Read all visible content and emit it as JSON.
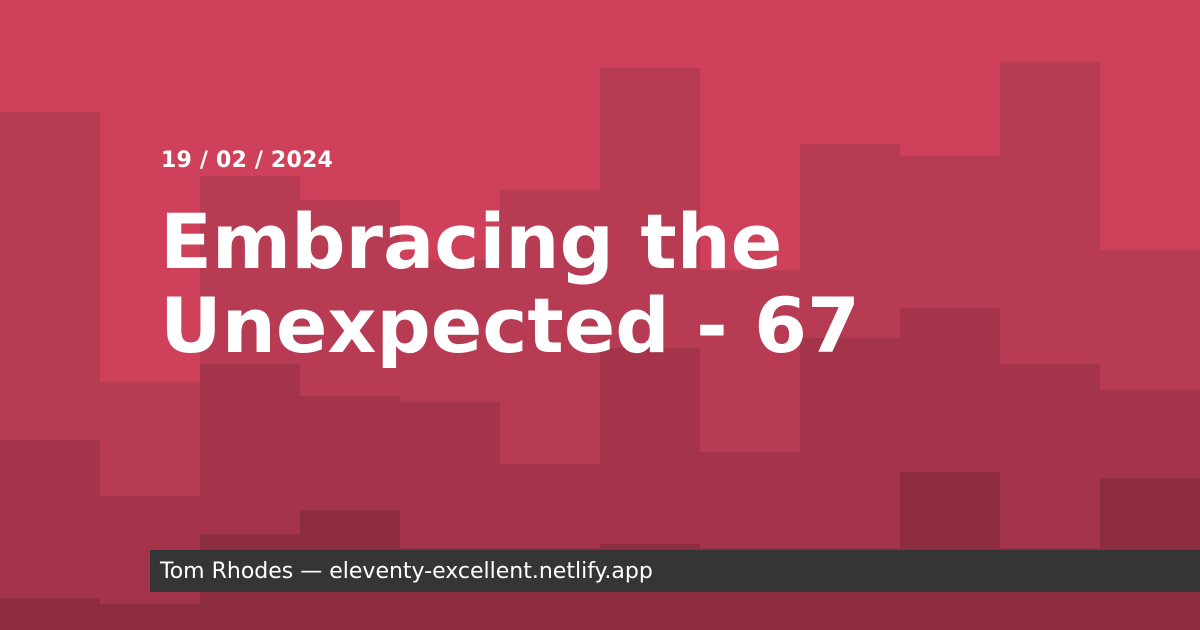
{
  "post": {
    "date": "19 / 02 / 2024",
    "title": "Embracing the Unexpected - 67"
  },
  "footer": {
    "author": "Tom Rhodes",
    "separator": "—",
    "site": "eleventy-excellent.netlify.app"
  },
  "colors": {
    "background": "#cf415b",
    "band_light": "#b73b52",
    "band_mid": "#a33449",
    "band_dark": "#8e2c40",
    "footer_bar": "#353535",
    "text": "#ffffff"
  }
}
